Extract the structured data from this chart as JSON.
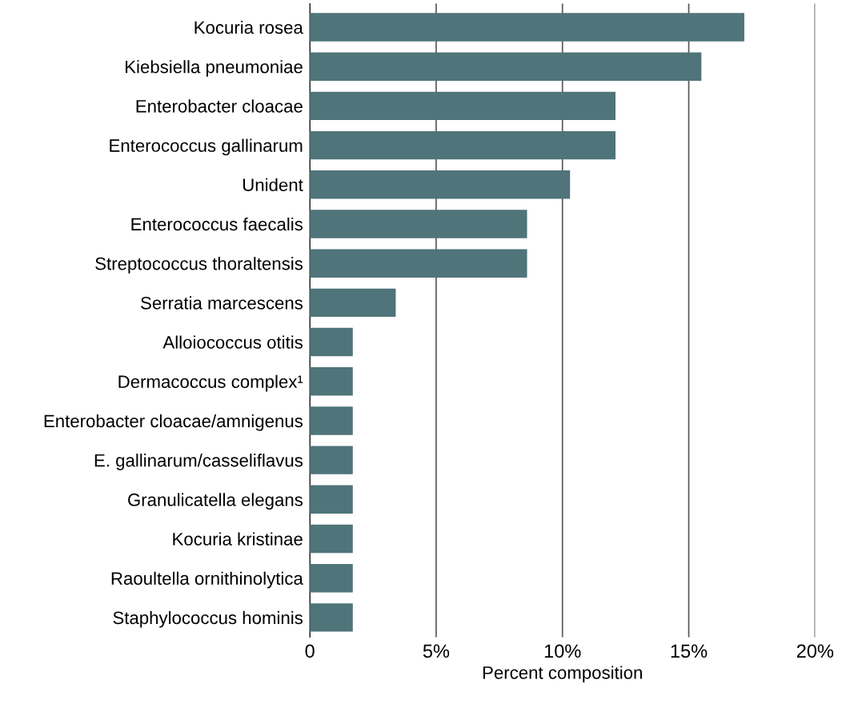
{
  "chart_data": {
    "type": "bar",
    "orientation": "horizontal",
    "xlabel": "Percent composition",
    "categories": [
      "Kocuria rosea",
      "Kiebsiella pneumoniae",
      "Enterobacter cloacae",
      "Enterococcus gallinarum",
      "Unident",
      "Enterococcus faecalis",
      "Streptococcus thoraltensis",
      "Serratia marcescens",
      "Alloiococcus otitis",
      "Dermacoccus complex¹",
      "Enterobacter cloacae/amnigenus",
      "E. gallinarum/casseliflavus",
      "Granulicatella elegans",
      "Kocuria kristinae",
      "Raoultella ornithinolytica",
      "Staphylococcus hominis"
    ],
    "values": [
      17.2,
      15.5,
      12.1,
      12.1,
      10.3,
      8.6,
      8.6,
      3.4,
      1.7,
      1.7,
      1.7,
      1.7,
      1.7,
      1.7,
      1.7,
      1.7
    ],
    "color": "#4f7479",
    "xlim": [
      0,
      20
    ],
    "xticks": [
      0,
      {
        "value": 5,
        "label": "5%"
      },
      {
        "value": 10,
        "label": "10%"
      },
      {
        "value": 15,
        "label": "15%"
      },
      {
        "value": 20,
        "label": "20%"
      }
    ],
    "grid": "x",
    "legend": false
  }
}
